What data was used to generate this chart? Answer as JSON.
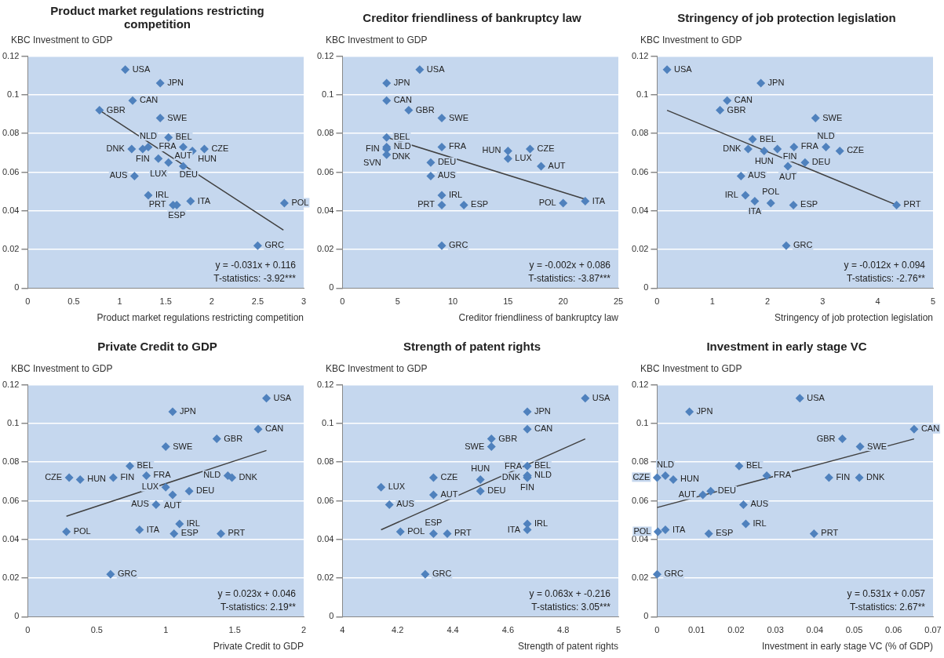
{
  "chart_data": [
    {
      "type": "scatter",
      "title": "Product market regulations restricting competition",
      "xlabel": "Product market regulations restricting competition",
      "ylabel": "KBC Investment to GDP",
      "xlim": [
        0,
        3
      ],
      "xticks": [
        0,
        0.5,
        1,
        1.5,
        2,
        2.5,
        3
      ],
      "ylim": [
        0,
        0.12
      ],
      "yticks": [
        0,
        0.02,
        0.04,
        0.06,
        0.08,
        0.1,
        0.12
      ],
      "grid": "y",
      "marker": "diamond",
      "annotations": [
        "y = -0.031x + 0.116",
        "T-statistics: -3.92***"
      ],
      "series": [
        {
          "type": "scatter",
          "color": "#4f81bd",
          "x": [
            1.06,
            1.44,
            1.14,
            0.78,
            1.44,
            1.53,
            1.69,
            1.79,
            1.92,
            1.31,
            1.13,
            1.25,
            1.42,
            1.53,
            1.69,
            1.16,
            1.31,
            1.77,
            1.58,
            1.62,
            2.79,
            2.5
          ],
          "values": [
            0.113,
            0.106,
            0.097,
            0.092,
            0.088,
            0.078,
            0.073,
            0.071,
            0.072,
            0.073,
            0.072,
            0.072,
            0.067,
            0.065,
            0.063,
            0.058,
            0.048,
            0.045,
            0.043,
            0.043,
            0.044,
            0.022
          ],
          "value_labels": [
            "USA",
            "JPN",
            "CAN",
            "GBR",
            "SWE",
            "BEL",
            "FRA",
            "HUN",
            "CZE",
            "NLD",
            "DNK",
            "FIN",
            "LUX",
            "DEU",
            "AUT",
            "AUS",
            "IRL",
            "ITA",
            "PRT",
            "ESP",
            "POL",
            "GRC"
          ]
        },
        {
          "type": "line",
          "color": "#404040",
          "marker": "none",
          "x": [
            0.78,
            2.78
          ],
          "values": [
            0.092,
            0.03
          ]
        }
      ]
    },
    {
      "type": "scatter",
      "title": "Creditor friendliness of bankruptcy law",
      "xlabel": "Creditor friendliness of bankruptcy law",
      "ylabel": "KBC Investment to GDP",
      "xlim": [
        0,
        25
      ],
      "xticks": [
        0,
        5,
        10,
        15,
        20,
        25
      ],
      "ylim": [
        0,
        0.12
      ],
      "yticks": [
        0,
        0.02,
        0.04,
        0.06,
        0.08,
        0.1,
        0.12
      ],
      "grid": "y",
      "marker": "diamond",
      "annotations": [
        "y = -0.002x + 0.086",
        "T-statistics: -3.87***"
      ],
      "series": [
        {
          "type": "scatter",
          "color": "#4f81bd",
          "x": [
            7,
            4,
            4,
            6,
            9,
            4,
            4,
            4,
            4,
            4,
            9,
            15,
            17,
            15,
            18,
            8,
            8,
            9,
            9,
            11,
            20,
            22,
            9
          ],
          "values": [
            0.113,
            0.106,
            0.097,
            0.092,
            0.088,
            0.078,
            0.073,
            0.072,
            0.072,
            0.069,
            0.073,
            0.071,
            0.072,
            0.067,
            0.063,
            0.065,
            0.058,
            0.048,
            0.043,
            0.043,
            0.044,
            0.045,
            0.022
          ],
          "value_labels": [
            "USA",
            "JPN",
            "CAN",
            "GBR",
            "SWE",
            "BEL",
            "NLD",
            "FIN",
            "DNK",
            "SVN",
            "FRA",
            "HUN",
            "CZE",
            "LUX",
            "AUT",
            "DEU",
            "AUS",
            "IRL",
            "PRT",
            "ESP",
            "POL",
            "ITA",
            "GRC"
          ]
        },
        {
          "type": "line",
          "color": "#404040",
          "marker": "none",
          "x": [
            4,
            22
          ],
          "values": [
            0.078,
            0.046
          ]
        }
      ]
    },
    {
      "type": "scatter",
      "title": "Stringency of job protection legislation",
      "xlabel": "Stringency of job protection legislation",
      "ylabel": "KBC Investment to GDP",
      "xlim": [
        0,
        5
      ],
      "xticks": [
        0,
        1,
        2,
        3,
        4,
        5
      ],
      "ylim": [
        0,
        0.12
      ],
      "yticks": [
        0,
        0.02,
        0.04,
        0.06,
        0.08,
        0.1,
        0.12
      ],
      "grid": "y",
      "marker": "diamond",
      "annotations": [
        "y = -0.012x + 0.094",
        "T-statistics: -2.76**"
      ],
      "series": [
        {
          "type": "scatter",
          "color": "#4f81bd",
          "x": [
            0.18,
            1.88,
            1.27,
            1.14,
            2.87,
            1.73,
            1.94,
            2.48,
            3.06,
            3.31,
            1.65,
            2.18,
            2.68,
            2.37,
            1.52,
            1.6,
            1.77,
            2.06,
            2.47,
            2.34,
            4.34
          ],
          "values": [
            0.113,
            0.106,
            0.097,
            0.092,
            0.088,
            0.077,
            0.071,
            0.073,
            0.073,
            0.071,
            0.072,
            0.072,
            0.065,
            0.063,
            0.058,
            0.048,
            0.045,
            0.044,
            0.043,
            0.022,
            0.043
          ],
          "value_labels": [
            "USA",
            "JPN",
            "CAN",
            "GBR",
            "SWE",
            "BEL",
            "HUN",
            "FRA",
            "NLD",
            "CZE",
            "DNK",
            "FIN",
            "DEU",
            "AUT",
            "AUS",
            "IRL",
            "ITA",
            "POL",
            "ESP",
            "GRC",
            "PRT"
          ]
        },
        {
          "type": "line",
          "color": "#404040",
          "marker": "none",
          "x": [
            0.18,
            4.34
          ],
          "values": [
            0.092,
            0.043
          ]
        }
      ]
    },
    {
      "type": "scatter",
      "title": "Private Credit to GDP",
      "xlabel": "Private Credit to GDP",
      "ylabel": "KBC Investment to GDP",
      "xlim": [
        0,
        2
      ],
      "xticks": [
        0,
        0.5,
        1,
        1.5,
        2
      ],
      "ylim": [
        0,
        0.12
      ],
      "yticks": [
        0,
        0.02,
        0.04,
        0.06,
        0.08,
        0.1,
        0.12
      ],
      "grid": "y",
      "marker": "diamond",
      "annotations": [
        "y = 0.023x + 0.046",
        "T-statistics: 2.19**"
      ],
      "series": [
        {
          "type": "scatter",
          "color": "#4f81bd",
          "x": [
            1.73,
            1.05,
            1.67,
            1.37,
            1.0,
            0.74,
            0.3,
            0.38,
            0.62,
            0.86,
            1.45,
            1.48,
            1.0,
            1.05,
            1.17,
            0.93,
            0.28,
            0.81,
            1.1,
            1.06,
            1.4,
            0.6
          ],
          "values": [
            0.113,
            0.106,
            0.097,
            0.092,
            0.088,
            0.078,
            0.072,
            0.071,
            0.072,
            0.073,
            0.073,
            0.072,
            0.067,
            0.063,
            0.065,
            0.058,
            0.044,
            0.045,
            0.048,
            0.043,
            0.043,
            0.022
          ],
          "value_labels": [
            "USA",
            "JPN",
            "CAN",
            "GBR",
            "SWE",
            "BEL",
            "CZE",
            "HUN",
            "FIN",
            "FRA",
            "NLD",
            "DNK",
            "LUX",
            "AUT",
            "DEU",
            "AUS",
            "POL",
            "ITA",
            "IRL",
            "ESP",
            "PRT",
            "GRC"
          ]
        },
        {
          "type": "line",
          "color": "#404040",
          "marker": "none",
          "x": [
            0.28,
            1.73
          ],
          "values": [
            0.052,
            0.086
          ]
        }
      ]
    },
    {
      "type": "scatter",
      "title": "Strength of patent rights",
      "xlabel": "Strength of patent rights",
      "ylabel": "KBC Investment to GDP",
      "xlim": [
        4,
        5
      ],
      "xticks": [
        4,
        4.2,
        4.4,
        4.6,
        4.8,
        5
      ],
      "ylim": [
        0,
        0.12
      ],
      "yticks": [
        0,
        0.02,
        0.04,
        0.06,
        0.08,
        0.1,
        0.12
      ],
      "grid": "y",
      "marker": "diamond",
      "annotations": [
        "y = 0.063x + -0.216",
        "T-statistics: 3.05***"
      ],
      "series": [
        {
          "type": "scatter",
          "color": "#4f81bd",
          "x": [
            4.88,
            4.67,
            4.67,
            4.54,
            4.54,
            4.67,
            4.67,
            4.67,
            4.67,
            4.67,
            4.33,
            4.5,
            4.14,
            4.33,
            4.5,
            4.17,
            4.21,
            4.33,
            4.38,
            4.67,
            4.67,
            4.3
          ],
          "values": [
            0.113,
            0.106,
            0.097,
            0.092,
            0.088,
            0.078,
            0.073,
            0.072,
            0.072,
            0.073,
            0.072,
            0.071,
            0.067,
            0.063,
            0.065,
            0.058,
            0.044,
            0.043,
            0.043,
            0.048,
            0.045,
            0.022
          ],
          "value_labels": [
            "USA",
            "JPN",
            "CAN",
            "GBR",
            "SWE",
            "BEL",
            "NLD",
            "DNK",
            "FIN",
            "FRA",
            "CZE",
            "HUN",
            "LUX",
            "AUT",
            "DEU",
            "AUS",
            "POL",
            "ESP",
            "PRT",
            "IRL",
            "ITA",
            "GRC"
          ]
        },
        {
          "type": "line",
          "color": "#404040",
          "marker": "none",
          "x": [
            4.14,
            4.88
          ],
          "values": [
            0.045,
            0.092
          ]
        }
      ]
    },
    {
      "type": "scatter",
      "title": "Investment in early stage VC",
      "xlabel": "Investment in early stage VC (% of GDP)",
      "ylabel": "KBC Investment to GDP",
      "xlim": [
        0,
        0.07
      ],
      "xticks": [
        0,
        0.01,
        0.02,
        0.03,
        0.04,
        0.05,
        0.06,
        0.07
      ],
      "ylim": [
        0,
        0.12
      ],
      "yticks": [
        0,
        0.02,
        0.04,
        0.06,
        0.08,
        0.1,
        0.12
      ],
      "grid": "y",
      "marker": "diamond",
      "annotations": [
        "y = 0.531x + 0.057",
        "T-statistics: 2.67**"
      ],
      "series": [
        {
          "type": "scatter",
          "color": "#4f81bd",
          "x": [
            0.0362,
            0.0082,
            0.0652,
            0.047,
            0.0515,
            0.0208,
            0,
            0.0021,
            0.0041,
            0.0278,
            0.0436,
            0.0513,
            0.0136,
            0.0116,
            0.0219,
            0.0225,
            0.0131,
            0.0398,
            0.0021,
            0.0002,
            0
          ],
          "values": [
            0.113,
            0.106,
            0.097,
            0.092,
            0.088,
            0.078,
            0.072,
            0.073,
            0.071,
            0.073,
            0.072,
            0.072,
            0.065,
            0.063,
            0.058,
            0.048,
            0.043,
            0.043,
            0.045,
            0.044,
            0.022
          ],
          "value_labels": [
            "USA",
            "JPN",
            "CAN",
            "GBR",
            "SWE",
            "BEL",
            "CZE",
            "NLD",
            "HUN",
            "FRA",
            "FIN",
            "DNK",
            "DEU",
            "AUT",
            "AUS",
            "IRL",
            "ESP",
            "PRT",
            "ITA",
            "POL",
            "GRC"
          ]
        },
        {
          "type": "line",
          "color": "#404040",
          "marker": "none",
          "x": [
            0,
            0.0652
          ],
          "values": [
            0.0565,
            0.092
          ]
        }
      ]
    }
  ]
}
